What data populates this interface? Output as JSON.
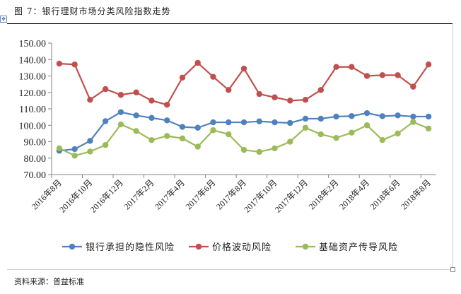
{
  "title": "图 7：银行理财市场分类风险指数走势",
  "source": "资料来源：普益标准",
  "chart_data": {
    "type": "line",
    "title": "银行理财市场分类风险指数走势",
    "ylim": [
      70,
      150
    ],
    "yticks": [
      "70.00",
      "80.00",
      "90.00",
      "100.00",
      "110.00",
      "120.00",
      "130.00",
      "140.00",
      "150.00"
    ],
    "x": [
      "2016-08",
      "2016-09",
      "2016-10",
      "2016-11",
      "2016-12",
      "2017-01",
      "2017-02",
      "2017-03",
      "2017-04",
      "2017-05",
      "2017-06",
      "2017-07",
      "2017-08",
      "2017-09",
      "2017-10",
      "2017-11",
      "2017-12",
      "2018-01",
      "2018-02",
      "2018-03",
      "2018-04",
      "2018-05",
      "2018-06",
      "2018-07",
      "2018-08"
    ],
    "xtick_labels": [
      "2016年8月",
      "2016年10月",
      "2016年12月",
      "2017年2月",
      "2017年4月",
      "2017年6月",
      "2017年8月",
      "2017年10月",
      "2017年12月",
      "2018年2月",
      "2018年4月",
      "2018年6月",
      "2018年8月"
    ],
    "legend_position": "bottom",
    "grid": false,
    "series": [
      {
        "name": "银行承担的隐性风险",
        "color": "#4f81bd",
        "values": [
          84.5,
          85.5,
          90.5,
          102.5,
          108,
          106,
          104.5,
          103,
          99,
          98.5,
          101.8,
          101.8,
          101.8,
          102.4,
          101.8,
          101.4,
          104,
          104,
          105.3,
          105.6,
          107.4,
          105.5,
          106,
          105.3,
          105.3
        ]
      },
      {
        "name": "价格波动风险",
        "color": "#c0504d",
        "values": [
          137.5,
          137,
          115.5,
          122,
          118.5,
          120,
          115,
          112.5,
          129,
          138,
          129.5,
          121.5,
          134.5,
          119,
          117,
          115,
          115.5,
          121.5,
          135.5,
          135.5,
          130,
          130.5,
          130.5,
          123.5,
          137
        ]
      },
      {
        "name": "基础资产传导风险",
        "color": "#9bbb59",
        "values": [
          86,
          81.5,
          84,
          88,
          100.5,
          96.5,
          91,
          93.5,
          92,
          87,
          97,
          94.5,
          85,
          83.8,
          86,
          90,
          98.5,
          94.5,
          92.3,
          95.5,
          100,
          91,
          95,
          102,
          98
        ]
      }
    ]
  }
}
